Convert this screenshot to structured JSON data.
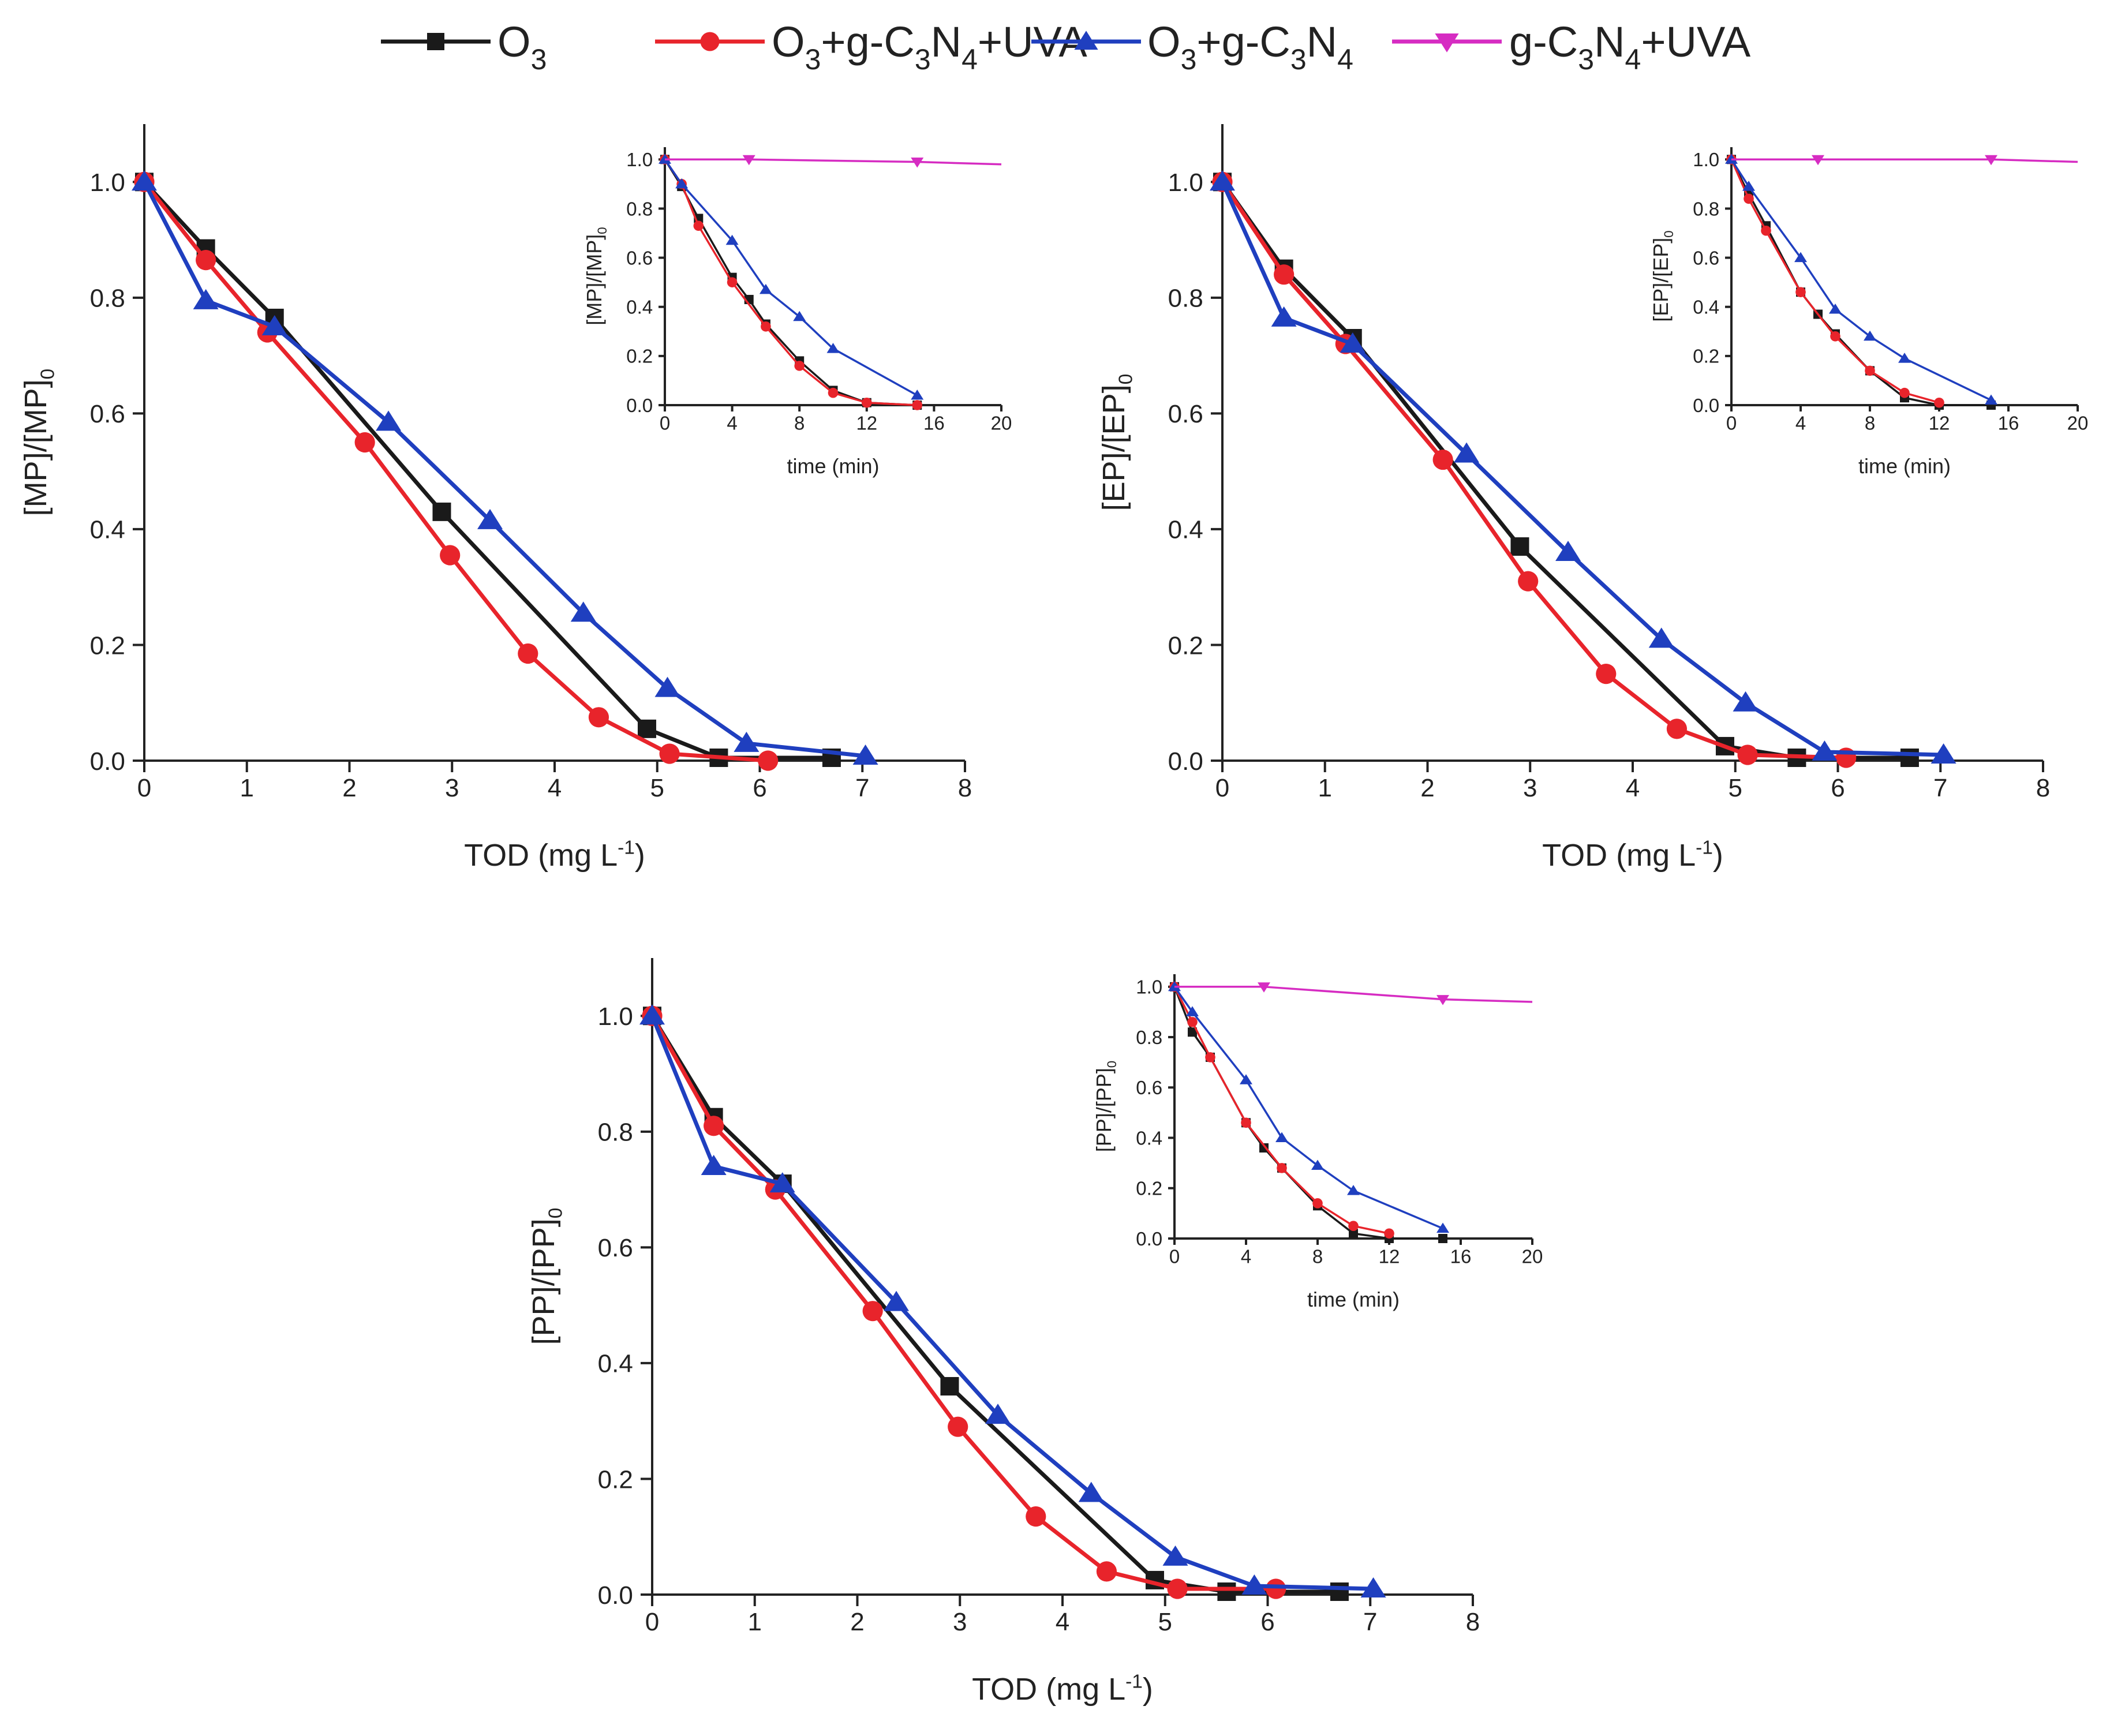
{
  "legend": [
    {
      "key": "O3",
      "label": "O",
      "sub1": "3",
      "color": "#1a1a1a",
      "marker": "square"
    },
    {
      "key": "O3_gC3N4_UVA",
      "label": "O",
      "sub1": "3",
      "rest": "+g-C",
      "sub2": "3",
      "mid": "N",
      "sub3": "4",
      "tail": "+UVA",
      "color": "#e8242b",
      "marker": "circle"
    },
    {
      "key": "O3_gC3N4",
      "label": "O",
      "sub1": "3",
      "rest": "+g-C",
      "sub2": "3",
      "mid": "N",
      "sub3": "4",
      "tail": "",
      "color": "#1f3fbf",
      "marker": "triangle-up"
    },
    {
      "key": "gC3N4_UVA",
      "label": "g-C",
      "sub1": "3",
      "rest": "N",
      "sub2": "4",
      "tail": "+UVA",
      "color": "#d62cc2",
      "marker": "triangle-down"
    }
  ],
  "chart_data": [
    {
      "id": "MP",
      "type": "line",
      "xlabel": "TOD (mg L",
      "xlabel_sup": "-1",
      "xlabel_close": ")",
      "ylabel": "[MP]/[MP]",
      "ylabel_sub": "0",
      "xlim": [
        0,
        8
      ],
      "ylim": [
        0,
        1.1
      ],
      "xticks": [
        "0",
        "1",
        "2",
        "3",
        "4",
        "5",
        "6",
        "7",
        "8"
      ],
      "yticks": [
        "0.0",
        "0.2",
        "0.4",
        "0.6",
        "0.8",
        "1.0"
      ],
      "series": [
        {
          "name": "O3",
          "x": [
            0,
            0.6,
            1.27,
            2.9,
            4.9,
            5.6,
            6.7
          ],
          "y": [
            1.0,
            0.885,
            0.765,
            0.43,
            0.055,
            0.005,
            0.005
          ]
        },
        {
          "name": "O3+g-C3N4+UVA",
          "x": [
            0,
            0.6,
            1.2,
            2.15,
            2.98,
            3.74,
            4.43,
            5.12,
            6.08
          ],
          "y": [
            1.0,
            0.865,
            0.74,
            0.55,
            0.355,
            0.185,
            0.075,
            0.012,
            0.0
          ]
        },
        {
          "name": "O3+g-C3N4",
          "x": [
            0,
            0.6,
            1.27,
            2.38,
            3.37,
            4.28,
            5.1,
            5.87,
            7.03
          ],
          "y": [
            1.0,
            0.795,
            0.75,
            0.585,
            0.415,
            0.255,
            0.125,
            0.03,
            0.008
          ]
        }
      ],
      "inset": {
        "xlabel": "time (min)",
        "ylabel": "[MP]/[MP]",
        "ylabel_sub": "0",
        "xlim": [
          0,
          20
        ],
        "ylim": [
          0,
          1.05
        ],
        "xticks": [
          "0",
          "4",
          "8",
          "12",
          "16",
          "20"
        ],
        "yticks": [
          "0.0",
          "0.2",
          "0.4",
          "0.6",
          "0.8",
          "1.0"
        ],
        "series": [
          {
            "name": "O3",
            "x": [
              0,
              1,
              2,
              4,
              5,
              6,
              8,
              10,
              12,
              15
            ],
            "y": [
              1.0,
              0.89,
              0.76,
              0.52,
              0.43,
              0.33,
              0.18,
              0.06,
              0.01,
              0.0
            ]
          },
          {
            "name": "O3+g-C3N4+UVA",
            "x": [
              0,
              1,
              2,
              4,
              6,
              8,
              10,
              12,
              15
            ],
            "y": [
              1.0,
              0.9,
              0.73,
              0.5,
              0.32,
              0.16,
              0.05,
              0.01,
              0.0
            ]
          },
          {
            "name": "O3+g-C3N4",
            "x": [
              0,
              1,
              4,
              6,
              8,
              10,
              15
            ],
            "y": [
              1.0,
              0.9,
              0.67,
              0.47,
              0.36,
              0.23,
              0.04
            ]
          },
          {
            "name": "g-C3N4+UVA",
            "x": [
              0,
              5,
              15,
              20
            ],
            "y": [
              1.0,
              1.0,
              0.99,
              0.98
            ]
          }
        ]
      }
    },
    {
      "id": "EP",
      "type": "line",
      "xlabel": "TOD (mg L",
      "xlabel_sup": "-1",
      "xlabel_close": ")",
      "ylabel": "[EP]/[EP]",
      "ylabel_sub": "0",
      "xlim": [
        0,
        8
      ],
      "ylim": [
        0,
        1.1
      ],
      "xticks": [
        "0",
        "1",
        "2",
        "3",
        "4",
        "5",
        "6",
        "7",
        "8"
      ],
      "yticks": [
        "0.0",
        "0.2",
        "0.4",
        "0.6",
        "0.8",
        "1.0"
      ],
      "series": [
        {
          "name": "O3",
          "x": [
            0,
            0.6,
            1.27,
            2.9,
            4.9,
            5.6,
            6.7
          ],
          "y": [
            1.0,
            0.85,
            0.73,
            0.37,
            0.025,
            0.005,
            0.005
          ]
        },
        {
          "name": "O3+g-C3N4+UVA",
          "x": [
            0,
            0.6,
            1.2,
            2.15,
            2.98,
            3.74,
            4.43,
            5.12,
            6.08
          ],
          "y": [
            1.0,
            0.84,
            0.72,
            0.52,
            0.31,
            0.15,
            0.055,
            0.01,
            0.005
          ]
        },
        {
          "name": "O3+g-C3N4",
          "x": [
            0,
            0.6,
            1.27,
            2.38,
            3.37,
            4.28,
            5.1,
            5.87,
            7.03
          ],
          "y": [
            1.0,
            0.765,
            0.72,
            0.53,
            0.36,
            0.21,
            0.1,
            0.015,
            0.01
          ]
        }
      ],
      "inset": {
        "xlabel": "time (min)",
        "ylabel": "[EP]/[EP]",
        "ylabel_sub": "0",
        "xlim": [
          0,
          20
        ],
        "ylim": [
          0,
          1.05
        ],
        "xticks": [
          "0",
          "4",
          "8",
          "12",
          "16",
          "20"
        ],
        "yticks": [
          "0.0",
          "0.2",
          "0.4",
          "0.6",
          "0.8",
          "1.0"
        ],
        "series": [
          {
            "name": "O3",
            "x": [
              0,
              1,
              2,
              4,
              5,
              6,
              8,
              10,
              12,
              15
            ],
            "y": [
              1.0,
              0.86,
              0.73,
              0.46,
              0.37,
              0.29,
              0.14,
              0.03,
              0.0,
              0.0
            ]
          },
          {
            "name": "O3+g-C3N4+UVA",
            "x": [
              0,
              1,
              2,
              4,
              6,
              8,
              10,
              12
            ],
            "y": [
              1.0,
              0.84,
              0.71,
              0.46,
              0.28,
              0.14,
              0.05,
              0.01
            ]
          },
          {
            "name": "O3+g-C3N4",
            "x": [
              0,
              1,
              4,
              6,
              8,
              10,
              15
            ],
            "y": [
              1.0,
              0.89,
              0.6,
              0.39,
              0.28,
              0.19,
              0.02
            ]
          },
          {
            "name": "g-C3N4+UVA",
            "x": [
              0,
              5,
              15,
              20
            ],
            "y": [
              1.0,
              1.0,
              1.0,
              0.99
            ]
          }
        ]
      }
    },
    {
      "id": "PP",
      "type": "line",
      "xlabel": "TOD (mg L",
      "xlabel_sup": "-1",
      "xlabel_close": ")",
      "ylabel": "[PP]/[PP]",
      "ylabel_sub": "0",
      "xlim": [
        0,
        8
      ],
      "ylim": [
        0,
        1.1
      ],
      "xticks": [
        "0",
        "1",
        "2",
        "3",
        "4",
        "5",
        "6",
        "7",
        "8"
      ],
      "yticks": [
        "0.0",
        "0.2",
        "0.4",
        "0.6",
        "0.8",
        "1.0"
      ],
      "series": [
        {
          "name": "O3",
          "x": [
            0,
            0.6,
            1.27,
            2.9,
            4.9,
            5.6,
            6.7
          ],
          "y": [
            1.0,
            0.825,
            0.71,
            0.36,
            0.025,
            0.005,
            0.005
          ]
        },
        {
          "name": "O3+g-C3N4+UVA",
          "x": [
            0,
            0.6,
            1.2,
            2.15,
            2.98,
            3.74,
            4.43,
            5.12,
            6.08
          ],
          "y": [
            1.0,
            0.81,
            0.7,
            0.49,
            0.29,
            0.135,
            0.04,
            0.01,
            0.01
          ]
        },
        {
          "name": "O3+g-C3N4",
          "x": [
            0,
            0.6,
            1.27,
            2.38,
            3.37,
            4.28,
            5.1,
            5.87,
            7.03
          ],
          "y": [
            1.0,
            0.74,
            0.71,
            0.505,
            0.31,
            0.175,
            0.065,
            0.015,
            0.01
          ]
        }
      ],
      "inset": {
        "xlabel": "time (min)",
        "ylabel": "[PP]/[PP]",
        "ylabel_sub": "0",
        "xlim": [
          0,
          20
        ],
        "ylim": [
          0,
          1.05
        ],
        "xticks": [
          "0",
          "4",
          "8",
          "12",
          "16",
          "20"
        ],
        "yticks": [
          "0.0",
          "0.2",
          "0.4",
          "0.6",
          "0.8",
          "1.0"
        ],
        "series": [
          {
            "name": "O3",
            "x": [
              0,
              1,
              2,
              4,
              5,
              6,
              8,
              10,
              12,
              15
            ],
            "y": [
              1.0,
              0.82,
              0.72,
              0.46,
              0.36,
              0.28,
              0.13,
              0.02,
              0.0,
              0.0
            ]
          },
          {
            "name": "O3+g-C3N4+UVA",
            "x": [
              0,
              1,
              2,
              4,
              6,
              8,
              10,
              12
            ],
            "y": [
              1.0,
              0.86,
              0.72,
              0.46,
              0.28,
              0.14,
              0.05,
              0.02
            ]
          },
          {
            "name": "O3+g-C3N4",
            "x": [
              0,
              1,
              4,
              6,
              8,
              10,
              15
            ],
            "y": [
              1.0,
              0.9,
              0.63,
              0.4,
              0.29,
              0.19,
              0.04
            ]
          },
          {
            "name": "g-C3N4+UVA",
            "x": [
              0,
              5,
              15,
              20
            ],
            "y": [
              1.0,
              1.0,
              0.95,
              0.94
            ]
          }
        ]
      }
    }
  ]
}
